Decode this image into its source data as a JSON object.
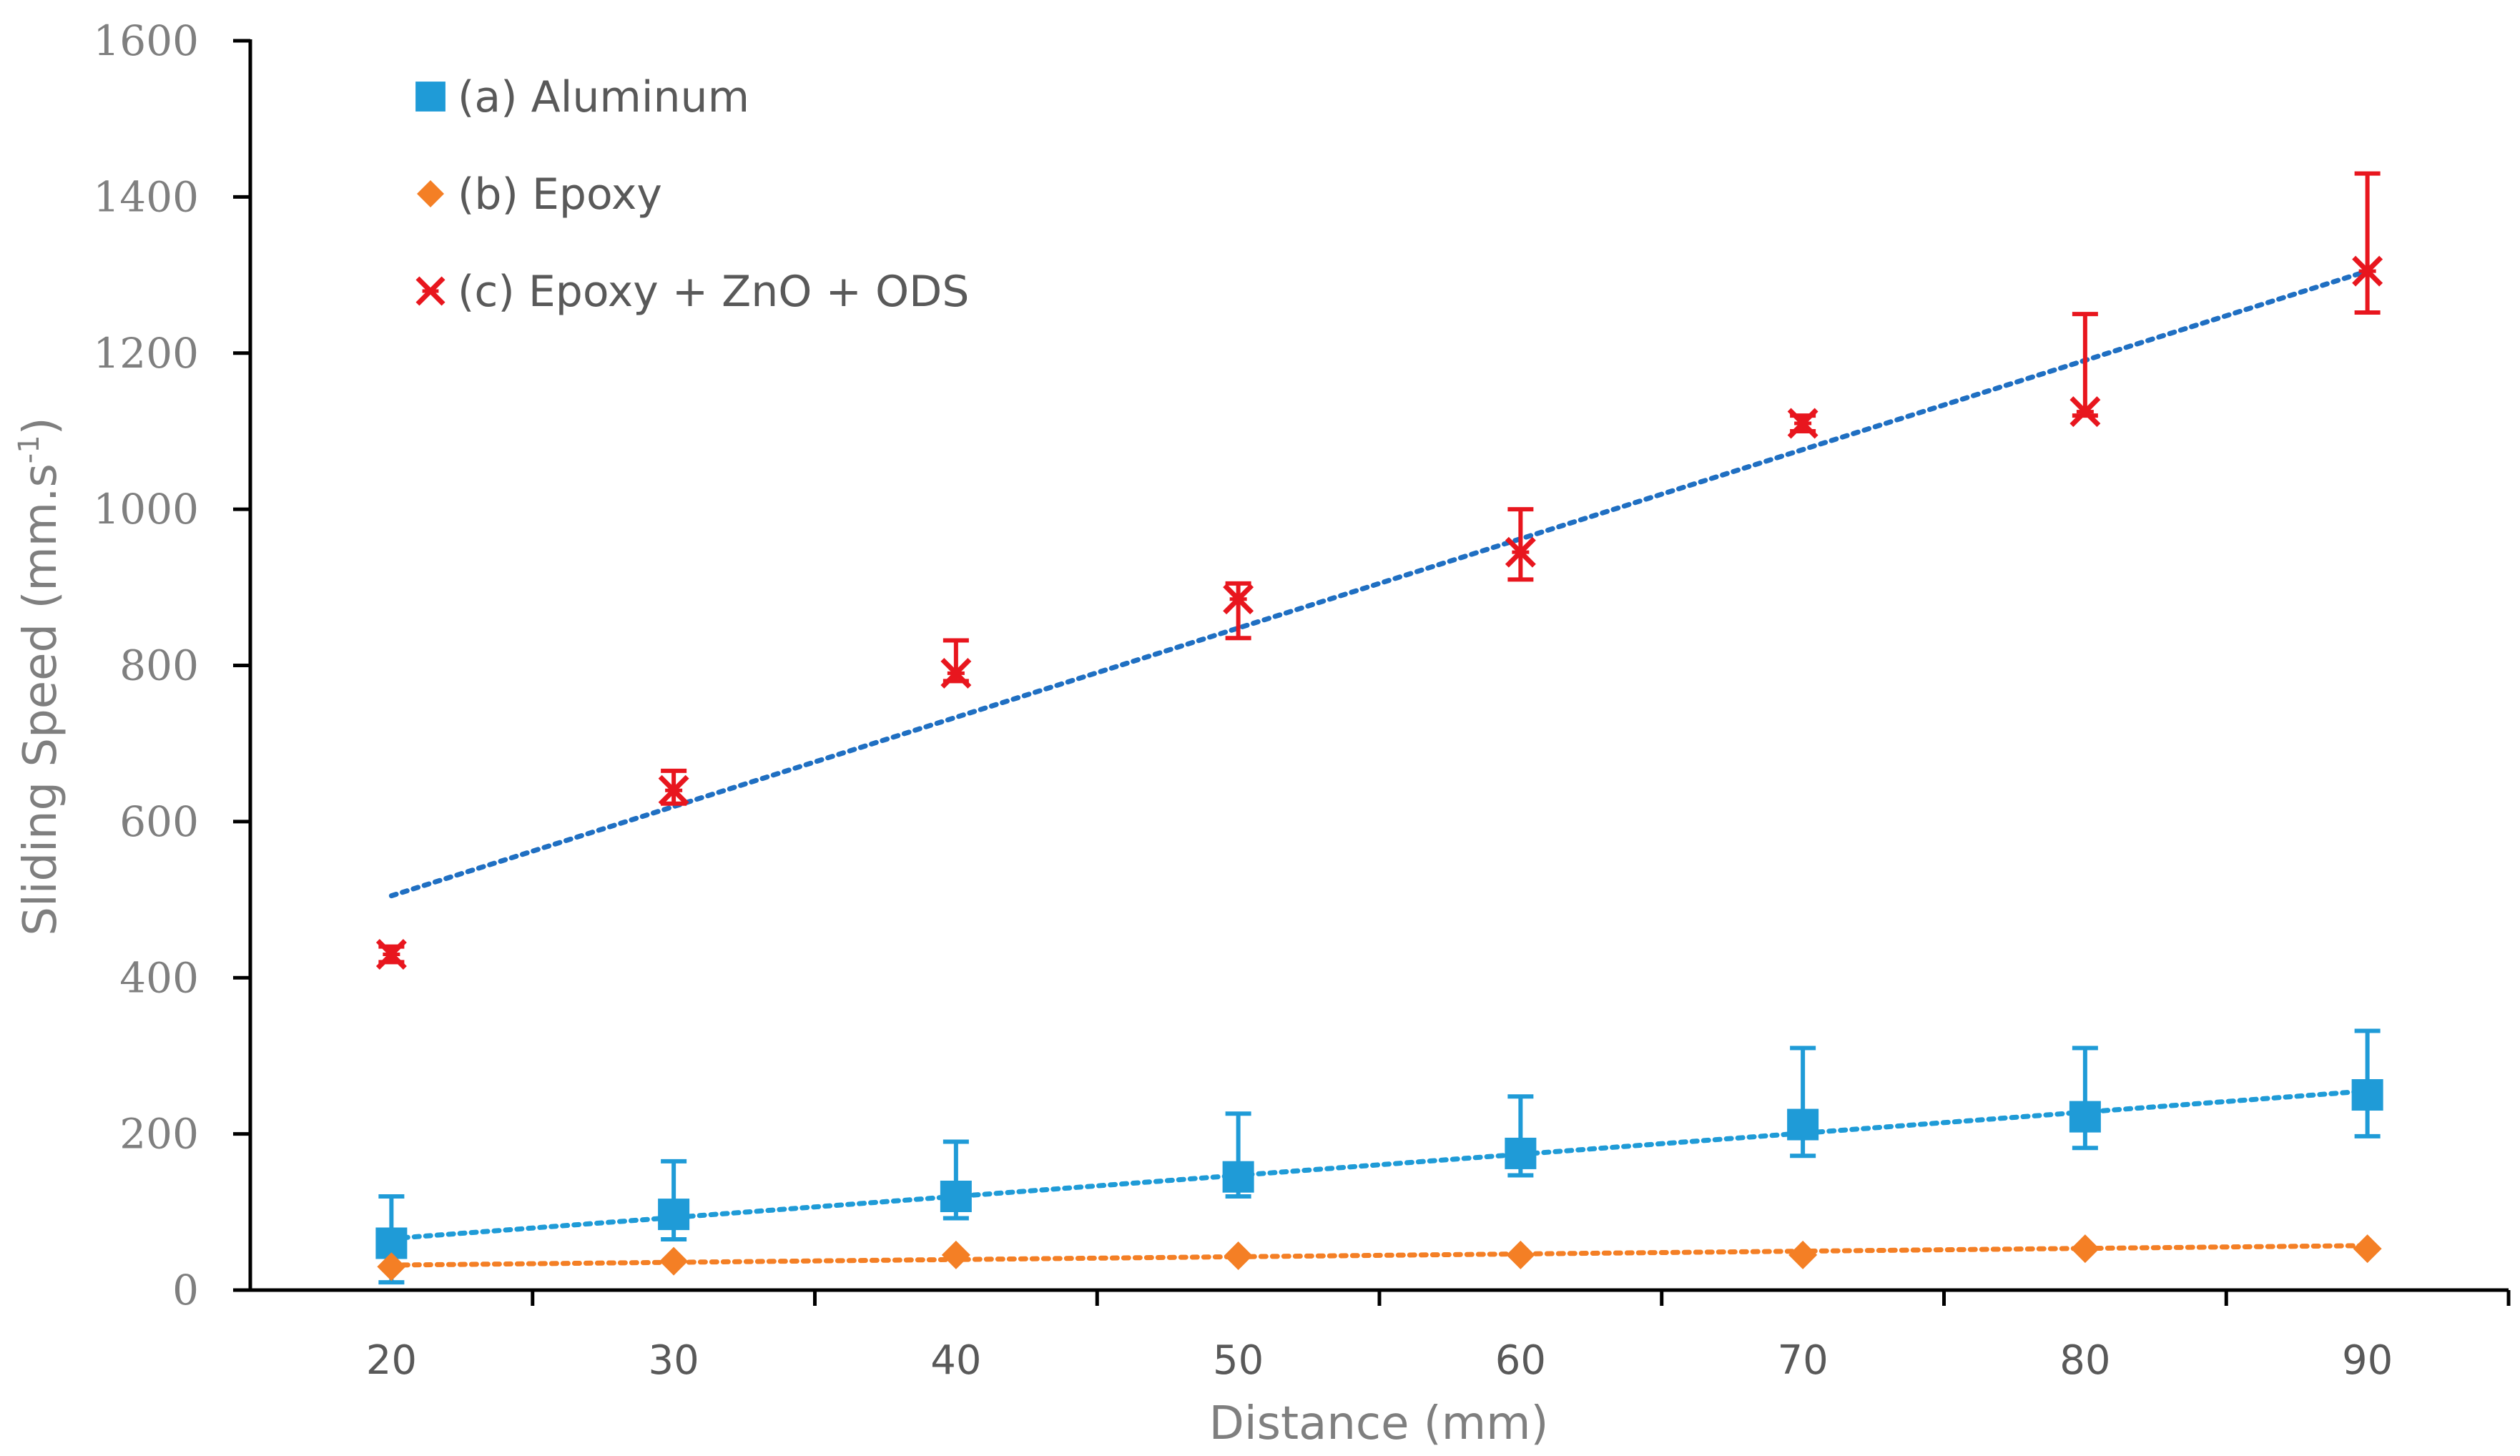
{
  "chart_data": {
    "type": "scatter",
    "title": "",
    "xlabel": "Distance (mm)",
    "ylabel_main": "Sliding Speed (mm.s",
    "ylabel_sup": "-1",
    "ylabel_close": ")",
    "xlim": [
      15,
      95
    ],
    "ylim": [
      0,
      1600
    ],
    "xticks": [
      20,
      30,
      40,
      50,
      60,
      70,
      80,
      90
    ],
    "xtick_labels": [
      "20",
      "30",
      "40",
      "50",
      "60",
      "70",
      "80",
      "90"
    ],
    "yticks": [
      0,
      200,
      400,
      600,
      800,
      1000,
      1200,
      1400,
      1600
    ],
    "ytick_labels": [
      "0",
      "200",
      "400",
      "600",
      "800",
      "1000",
      "1200",
      "1400",
      "1600"
    ],
    "grid": false,
    "legend_position": "top-left",
    "series": [
      {
        "name": "(a) Aluminum",
        "marker": "square",
        "color": "#1f9bd7",
        "trendline_color": "#1f9bd7",
        "x": [
          20,
          30,
          40,
          50,
          60,
          70,
          80,
          90
        ],
        "values": [
          60,
          97,
          120,
          145,
          175,
          212,
          222,
          250
        ],
        "err_low": [
          60,
          97,
          120,
          145,
          175,
          212,
          222,
          250
        ],
        "err_high": [
          120,
          165,
          190,
          226,
          248,
          310,
          310,
          332
        ],
        "err_low_end": [
          10,
          65,
          92,
          120,
          147,
          172,
          182,
          197
        ],
        "trendline": {
          "x": [
            20,
            90
          ],
          "y": [
            66,
            255
          ]
        }
      },
      {
        "name": "(b) Epoxy",
        "marker": "diamond",
        "color": "#f47f25",
        "trendline_color": "#f47f25",
        "x": [
          20,
          30,
          40,
          50,
          60,
          70,
          80,
          90
        ],
        "values": [
          30,
          37,
          45,
          44,
          45,
          45,
          53,
          53
        ],
        "trendline": {
          "x": [
            20,
            90
          ],
          "y": [
            32,
            57
          ]
        }
      },
      {
        "name": "(c) Epoxy + ZnO + ODS",
        "marker": "x-star",
        "color": "#e8161e",
        "trendline_color": "#1f6fc2",
        "x": [
          20,
          30,
          40,
          50,
          60,
          70,
          80,
          90
        ],
        "values": [
          430,
          640,
          790,
          885,
          945,
          1110,
          1125,
          1305
        ],
        "err_high": [
          440,
          665,
          832,
          905,
          1000,
          1120,
          1250,
          1430
        ],
        "err_low_end": [
          420,
          623,
          780,
          835,
          910,
          1100,
          1120,
          1252
        ],
        "trendline": {
          "x": [
            20,
            90
          ],
          "y": [
            505,
            1305
          ]
        }
      }
    ]
  }
}
